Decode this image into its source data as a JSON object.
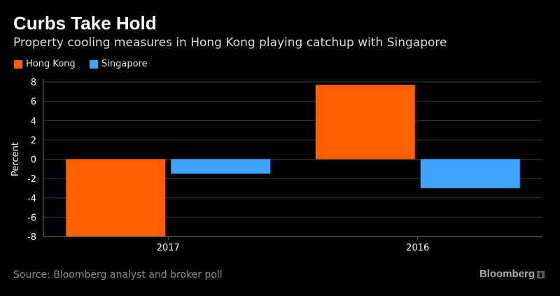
{
  "title": "Curbs Take Hold",
  "subtitle": "Property cooling measures in Hong Kong playing catchup with Singapore",
  "source": "Source: Bloomberg analyst and broker poll",
  "brand": "Bloomberg",
  "colors": {
    "background": "#000000",
    "hong_kong": "#ff5f00",
    "singapore": "#3fa4ff",
    "grid": "#3a3a3a",
    "axis_text": "#ffffff"
  },
  "chart_data": {
    "type": "bar",
    "categories": [
      "2017",
      "2016"
    ],
    "series": [
      {
        "name": "Hong Kong",
        "values": [
          -8.0,
          7.7
        ]
      },
      {
        "name": "Singapore",
        "values": [
          -1.5,
          -3.0
        ]
      }
    ],
    "ylabel": "Percent",
    "xlabel": "",
    "ylim": [
      -8,
      8
    ],
    "yticks": [
      "8",
      "6",
      "4",
      "2",
      "0",
      "-2",
      "-4",
      "-6",
      "-8"
    ],
    "grid": true,
    "legend": "top-left"
  }
}
